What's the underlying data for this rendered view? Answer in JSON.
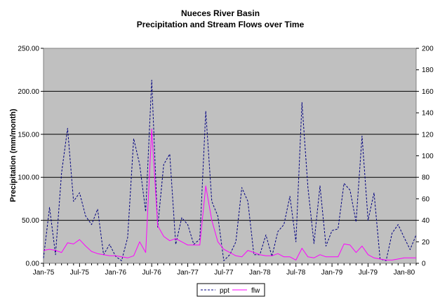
{
  "chart_data": {
    "type": "line",
    "title": "Nueces River Basin",
    "subtitle": "Precipitation and Stream Flows over Time",
    "ylabel": "Precipitation (mm/month)",
    "y2label": "",
    "ylim": [
      0,
      250
    ],
    "y2lim": [
      0,
      200
    ],
    "yticks": [
      "0.00",
      "50.00",
      "100.00",
      "150.00",
      "200.00",
      "250.00"
    ],
    "y2ticks": [
      "0",
      "20",
      "40",
      "60",
      "80",
      "100",
      "120",
      "140",
      "160",
      "180",
      "200"
    ],
    "xticks": [
      {
        "label": "Jan-75",
        "index": 0
      },
      {
        "label": "Jul-75",
        "index": 6
      },
      {
        "label": "Jan-76",
        "index": 12
      },
      {
        "label": "Jul-76",
        "index": 18
      },
      {
        "label": "Jan-77",
        "index": 24
      },
      {
        "label": "Jul-77",
        "index": 30
      },
      {
        "label": "Jan-78",
        "index": 36
      },
      {
        "label": "Jul-78",
        "index": 42
      },
      {
        "label": "Jan-79",
        "index": 48
      },
      {
        "label": "Jul-79",
        "index": 54
      },
      {
        "label": "Jan-80",
        "index": 60
      }
    ],
    "grid": true,
    "legend_position": "bottom",
    "series": [
      {
        "name": "ppt",
        "axis": "left",
        "color": "#000080",
        "style": "dashed",
        "values": [
          6,
          65,
          10,
          105,
          157,
          72,
          82,
          55,
          45,
          63,
          10,
          22,
          8,
          3,
          30,
          145,
          115,
          60,
          213,
          42,
          115,
          127,
          22,
          53,
          45,
          22,
          28,
          177,
          72,
          55,
          3,
          10,
          25,
          88,
          72,
          10,
          10,
          33,
          8,
          37,
          45,
          78,
          25,
          187,
          88,
          23,
          90,
          20,
          38,
          40,
          93,
          85,
          48,
          148,
          50,
          82,
          5,
          3,
          35,
          45,
          30,
          16,
          33
        ]
      },
      {
        "name": "flw",
        "axis": "right",
        "color": "#ff00ff",
        "style": "solid",
        "values": [
          12,
          13,
          12,
          10,
          19,
          18,
          22,
          16,
          11,
          9,
          8,
          7,
          7,
          6,
          5,
          7,
          20,
          10,
          125,
          35,
          25,
          21,
          23,
          20,
          17,
          17,
          17,
          72,
          40,
          20,
          13,
          10,
          7,
          6,
          12,
          10,
          8,
          7,
          7,
          9,
          6,
          6,
          3,
          14,
          6,
          5,
          8,
          6,
          6,
          6,
          18,
          17,
          10,
          16,
          8,
          5,
          4,
          3,
          3,
          4,
          5,
          5,
          5
        ]
      }
    ]
  }
}
